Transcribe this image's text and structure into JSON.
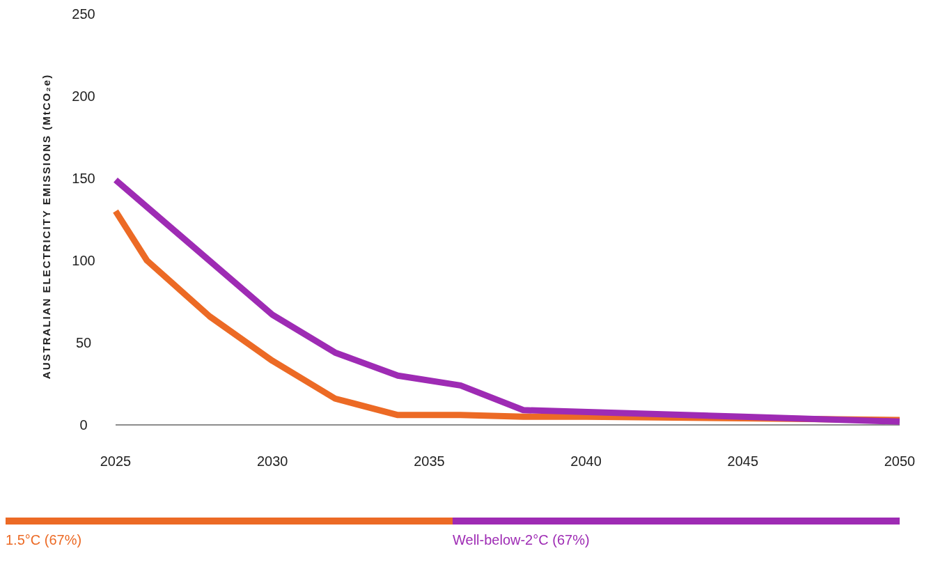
{
  "chart_data": {
    "type": "line",
    "ylabel": "AUSTRALIAN ELECTRICITY EMISSIONS (MtCO₂e)",
    "xlim": [
      2025,
      2050
    ],
    "xticks": [
      2025,
      2030,
      2035,
      2040,
      2045,
      2050
    ],
    "ylim": [
      0,
      250
    ],
    "yticks": [
      0,
      50,
      100,
      150,
      200,
      250
    ],
    "grid": false,
    "legend": "bottom",
    "marker": "none",
    "line_style": "solid",
    "series": [
      {
        "name": "1.5°C (67%)",
        "color": "#ec6a25",
        "x": [
          2025,
          2026,
          2028,
          2030,
          2032,
          2034,
          2036,
          2038,
          2040,
          2045,
          2050
        ],
        "values": [
          130,
          100,
          66,
          39,
          16,
          6,
          6,
          5,
          5,
          4,
          3
        ]
      },
      {
        "name": "Well-below-2°C (67%)",
        "color": "#9e2bb4",
        "x": [
          2025,
          2030,
          2032,
          2034,
          2036,
          2038,
          2045,
          2050
        ],
        "values": [
          149,
          67,
          44,
          30,
          24,
          9,
          5,
          2
        ]
      }
    ]
  }
}
